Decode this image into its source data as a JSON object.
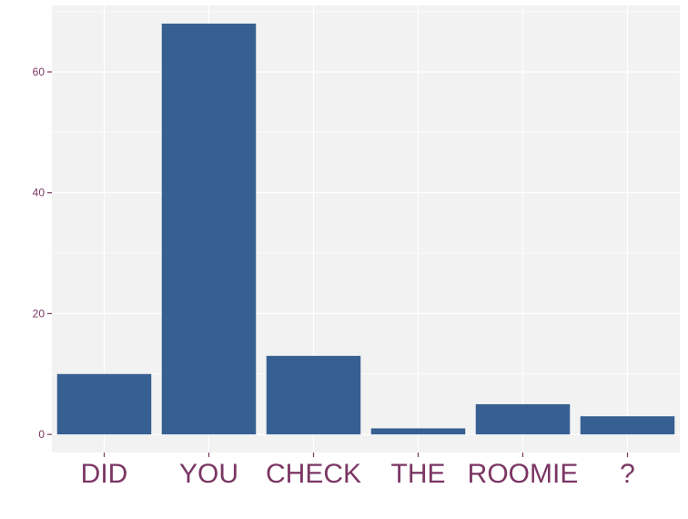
{
  "chart_data": {
    "type": "bar",
    "categories": [
      "DID",
      "YOU",
      "CHECK",
      "THE",
      "ROOMIE",
      "?"
    ],
    "values": [
      10,
      68,
      13,
      1,
      5,
      3
    ],
    "title": "",
    "xlabel": "",
    "ylabel": "",
    "ylim": [
      -3,
      71
    ],
    "yticks": [
      0,
      20,
      40,
      60
    ],
    "grid": true,
    "legend": "none",
    "colors": {
      "bar": "#376092",
      "panel": "#f2f2f2",
      "grid_major": "#ffffff",
      "grid_minor": "#fafafa",
      "tick_label": "#7b3663",
      "tick_mark": "#7b3663"
    }
  }
}
